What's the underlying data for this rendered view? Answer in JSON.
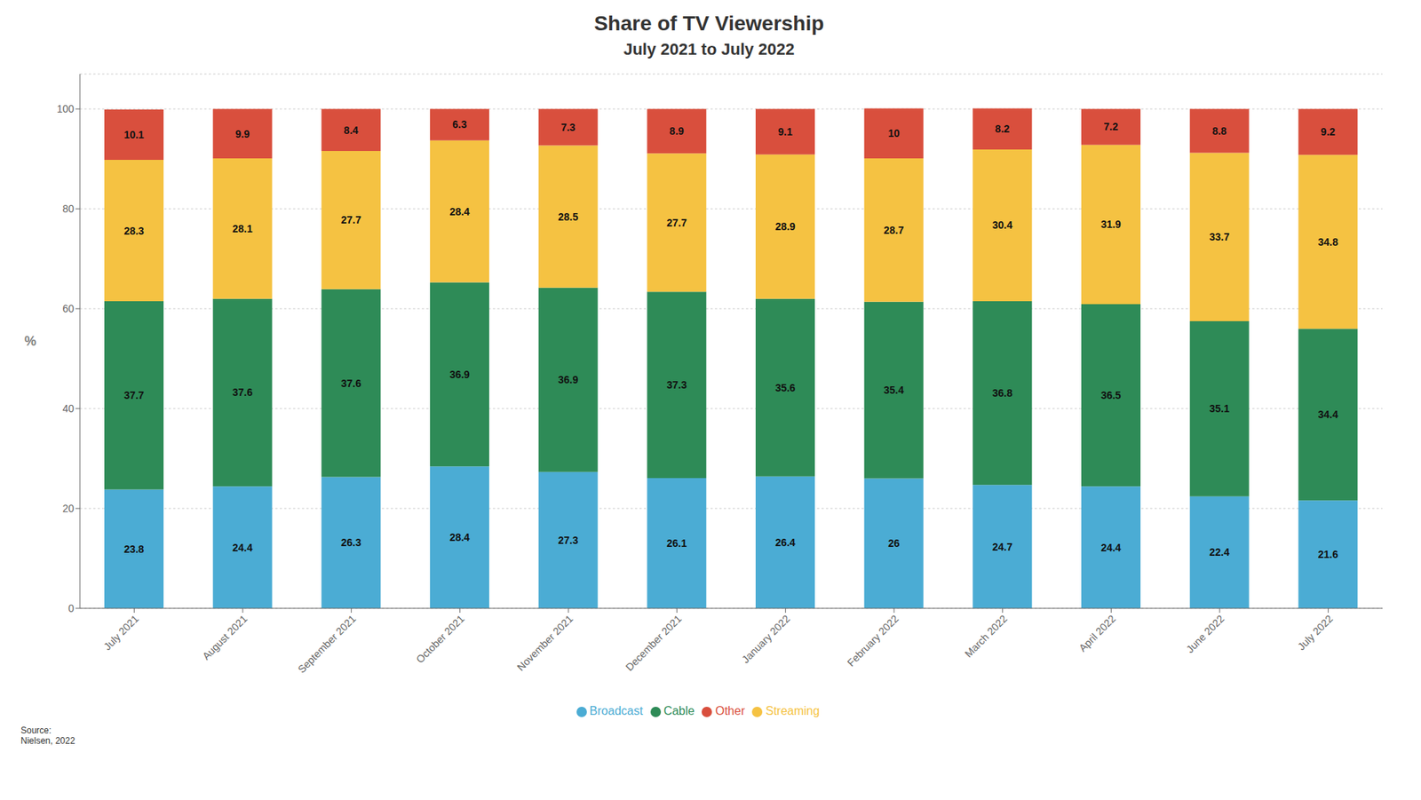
{
  "chart_data": {
    "type": "bar",
    "title": "Share of TV Viewership",
    "subtitle": "July 2021 to July 2022",
    "ylabel": "%",
    "categories": [
      "July 2021",
      "August 2021",
      "September 2021",
      "October 2021",
      "November 2021",
      "December 2021",
      "January 2022",
      "February 2022",
      "March 2022",
      "April 2022",
      "June 2022",
      "July 2022"
    ],
    "series": [
      {
        "name": "Broadcast",
        "color": "#4BACD4",
        "values": [
          23.8,
          24.4,
          26.3,
          28.4,
          27.3,
          26.1,
          26.4,
          26.0,
          24.7,
          24.4,
          22.4,
          21.6
        ]
      },
      {
        "name": "Cable",
        "color": "#2E8B57",
        "values": [
          37.7,
          37.6,
          37.6,
          36.9,
          36.9,
          37.3,
          35.6,
          35.4,
          36.8,
          36.5,
          35.1,
          34.4
        ]
      },
      {
        "name": "Streaming",
        "color": "#F5C242",
        "values": [
          28.3,
          28.1,
          27.7,
          28.4,
          28.5,
          27.7,
          28.9,
          28.7,
          30.4,
          31.9,
          33.7,
          34.8
        ]
      },
      {
        "name": "Other",
        "color": "#D94F3D",
        "values": [
          10.1,
          9.9,
          8.4,
          6.3,
          7.3,
          8.9,
          9.1,
          10.0,
          8.2,
          7.2,
          8.8,
          9.2
        ]
      }
    ],
    "ylim": [
      0,
      107
    ],
    "yticks": [
      0,
      20,
      40,
      60,
      80,
      100
    ],
    "grid": true,
    "stacked": true,
    "data_labels": true,
    "legend": "bottom",
    "annotations": [
      "Source:\nNielsen, 2022"
    ]
  }
}
